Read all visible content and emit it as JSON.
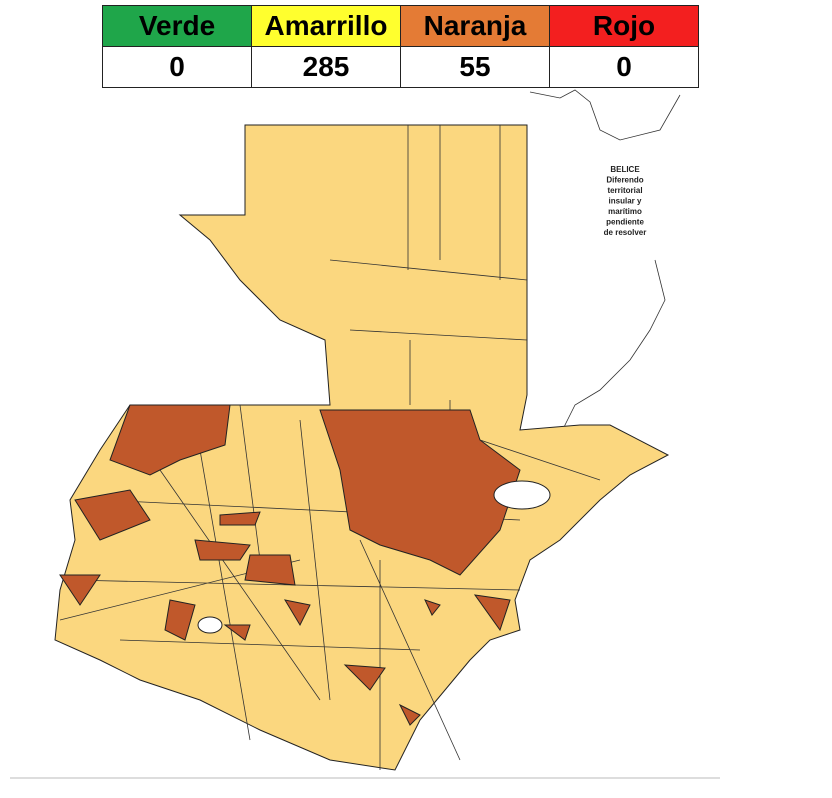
{
  "legend": {
    "headers": [
      "Verde",
      "Amarrillo",
      "Naranja",
      "Rojo"
    ],
    "counts": [
      "0",
      "285",
      "55",
      "0"
    ]
  },
  "belize_note": [
    "BELICE",
    "Diferendo",
    "territorial",
    "insular y",
    "marítimo",
    "pendiente",
    "de resolver"
  ]
}
